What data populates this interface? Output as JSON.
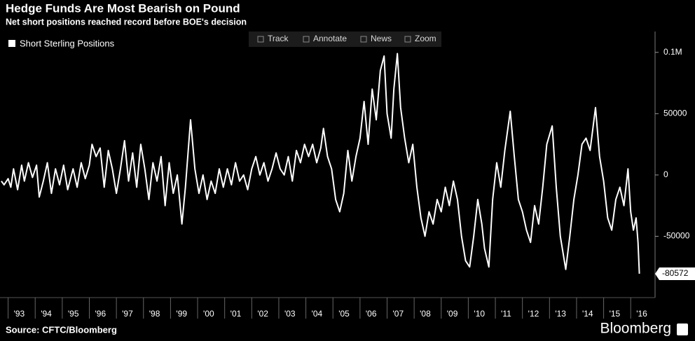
{
  "chart_data": {
    "type": "line",
    "title": "Hedge Funds Are Most Bearish on Pound",
    "subtitle": "Net short positions reached record before BOE's decision",
    "source": "Source: CFTC/Bloomberg",
    "brand": "Bloomberg",
    "toolbar": [
      "Track",
      "Annotate",
      "News",
      "Zoom"
    ],
    "legend": "top-left",
    "x": [
      1992.75,
      1992.85,
      1993.0,
      1993.1,
      1993.2,
      1993.35,
      1993.5,
      1993.6,
      1993.75,
      1993.9,
      1994.05,
      1994.15,
      1994.3,
      1994.45,
      1994.6,
      1994.75,
      1994.9,
      1995.05,
      1995.2,
      1995.4,
      1995.55,
      1995.7,
      1995.85,
      1996.0,
      1996.1,
      1996.25,
      1996.4,
      1996.55,
      1996.7,
      1996.85,
      1997.0,
      1997.15,
      1997.3,
      1997.45,
      1997.6,
      1997.75,
      1997.9,
      1998.05,
      1998.2,
      1998.35,
      1998.5,
      1998.65,
      1998.8,
      1998.95,
      1999.1,
      1999.25,
      1999.42,
      1999.55,
      1999.74,
      1999.9,
      2000.05,
      2000.2,
      2000.35,
      2000.5,
      2000.65,
      2000.8,
      2000.95,
      2001.1,
      2001.25,
      2001.4,
      2001.55,
      2001.7,
      2001.85,
      2002.0,
      2002.15,
      2002.3,
      2002.45,
      2002.6,
      2002.75,
      2002.9,
      2003.05,
      2003.2,
      2003.35,
      2003.5,
      2003.65,
      2003.8,
      2003.95,
      2004.1,
      2004.25,
      2004.4,
      2004.55,
      2004.65,
      2004.8,
      2004.95,
      2005.1,
      2005.25,
      2005.4,
      2005.55,
      2005.7,
      2005.85,
      2006.0,
      2006.15,
      2006.3,
      2006.45,
      2006.6,
      2006.75,
      2006.89,
      2007.0,
      2007.15,
      2007.25,
      2007.38,
      2007.5,
      2007.65,
      2007.8,
      2007.95,
      2008.1,
      2008.25,
      2008.4,
      2008.55,
      2008.7,
      2008.85,
      2009.0,
      2009.15,
      2009.3,
      2009.45,
      2009.6,
      2009.75,
      2009.9,
      2010.05,
      2010.2,
      2010.35,
      2010.5,
      2010.6,
      2010.76,
      2010.9,
      2011.05,
      2011.2,
      2011.35,
      2011.55,
      2011.7,
      2011.85,
      2012.0,
      2012.15,
      2012.3,
      2012.45,
      2012.6,
      2012.75,
      2012.9,
      2013.1,
      2013.25,
      2013.4,
      2013.6,
      2013.75,
      2013.9,
      2014.05,
      2014.2,
      2014.35,
      2014.5,
      2014.7,
      2014.85,
      2015.0,
      2015.15,
      2015.3,
      2015.45,
      2015.6,
      2015.75,
      2015.9,
      2016.0,
      2016.1,
      2016.2,
      2016.27,
      2016.32
    ],
    "series": [
      {
        "name": "Short Sterling Positions",
        "color": "#ffffff",
        "values": [
          -5000,
          -8000,
          -3000,
          -10000,
          5000,
          -12000,
          8000,
          -5000,
          10000,
          -2000,
          8000,
          -18000,
          -5000,
          10000,
          -15000,
          5000,
          -8000,
          8000,
          -12000,
          5000,
          -10000,
          10000,
          -3000,
          8000,
          25000,
          15000,
          22000,
          -10000,
          20000,
          5000,
          -15000,
          5000,
          28000,
          -5000,
          18000,
          -10000,
          25000,
          5000,
          -20000,
          10000,
          -5000,
          15000,
          -25000,
          10000,
          -15000,
          0,
          -40000,
          -10000,
          45000,
          5000,
          -15000,
          0,
          -20000,
          -5000,
          -15000,
          5000,
          -10000,
          5000,
          -8000,
          10000,
          -5000,
          0,
          -12000,
          5000,
          15000,
          0,
          10000,
          -5000,
          5000,
          18000,
          5000,
          0,
          15000,
          -5000,
          20000,
          10000,
          25000,
          15000,
          25000,
          10000,
          22000,
          38000,
          15000,
          5000,
          -20000,
          -30000,
          -15000,
          20000,
          -5000,
          15000,
          30000,
          60000,
          25000,
          70000,
          45000,
          85000,
          97000,
          50000,
          30000,
          70000,
          99000,
          55000,
          30000,
          10000,
          25000,
          -10000,
          -35000,
          -50000,
          -30000,
          -40000,
          -20000,
          -30000,
          -10000,
          -25000,
          -5000,
          -20000,
          -50000,
          -70000,
          -75000,
          -50000,
          -20000,
          -40000,
          -60000,
          -75000,
          -20000,
          10000,
          -10000,
          20000,
          52000,
          15000,
          -20000,
          -30000,
          -45000,
          -55000,
          -25000,
          -40000,
          -10000,
          25000,
          40000,
          -10000,
          -50000,
          -77000,
          -50000,
          -20000,
          0,
          25000,
          30000,
          20000,
          55000,
          15000,
          -5000,
          -35000,
          -45000,
          -20000,
          -10000,
          -25000,
          5000,
          -30000,
          -45000,
          -35000,
          -55000,
          -80572
        ]
      }
    ],
    "xlim": [
      1992.7,
      2016.9
    ],
    "xticks": [
      {
        "value": 1993,
        "label": "'93"
      },
      {
        "value": 1994,
        "label": "'94"
      },
      {
        "value": 1995,
        "label": "'95"
      },
      {
        "value": 1996,
        "label": "'96"
      },
      {
        "value": 1997,
        "label": "'97"
      },
      {
        "value": 1998,
        "label": "'98"
      },
      {
        "value": 1999,
        "label": "'99"
      },
      {
        "value": 2000,
        "label": "'00"
      },
      {
        "value": 2001,
        "label": "'01"
      },
      {
        "value": 2002,
        "label": "'02"
      },
      {
        "value": 2003,
        "label": "'03"
      },
      {
        "value": 2004,
        "label": "'04"
      },
      {
        "value": 2005,
        "label": "'05"
      },
      {
        "value": 2006,
        "label": "'06"
      },
      {
        "value": 2007,
        "label": "'07"
      },
      {
        "value": 2008,
        "label": "'08"
      },
      {
        "value": 2009,
        "label": "'09"
      },
      {
        "value": 2010,
        "label": "'10"
      },
      {
        "value": 2011,
        "label": "'11"
      },
      {
        "value": 2012,
        "label": "'12"
      },
      {
        "value": 2013,
        "label": "'13"
      },
      {
        "value": 2014,
        "label": "'14"
      },
      {
        "value": 2015,
        "label": "'15"
      },
      {
        "value": 2016,
        "label": "'16"
      }
    ],
    "ylim": [
      -100000,
      117000
    ],
    "yticks": [
      -50000,
      0,
      50000,
      {
        "value": 100000,
        "label": "0.1M"
      }
    ]
  }
}
